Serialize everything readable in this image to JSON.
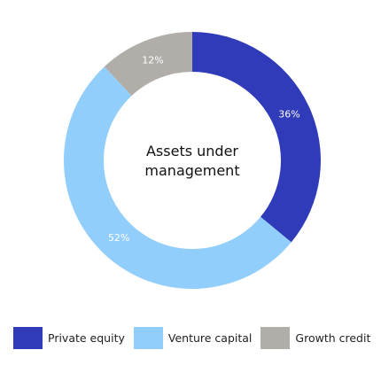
{
  "chart_data": {
    "type": "pie",
    "title": "Assets under management",
    "categories": [
      "Private equity",
      "Venture capital",
      "Growth credit"
    ],
    "values": [
      36,
      52,
      12
    ],
    "value_labels": [
      "36%",
      "52%",
      "12%"
    ],
    "colors": [
      "#2f3bb8",
      "#91cefb",
      "#b1aeaa"
    ],
    "legend": "bottom"
  }
}
